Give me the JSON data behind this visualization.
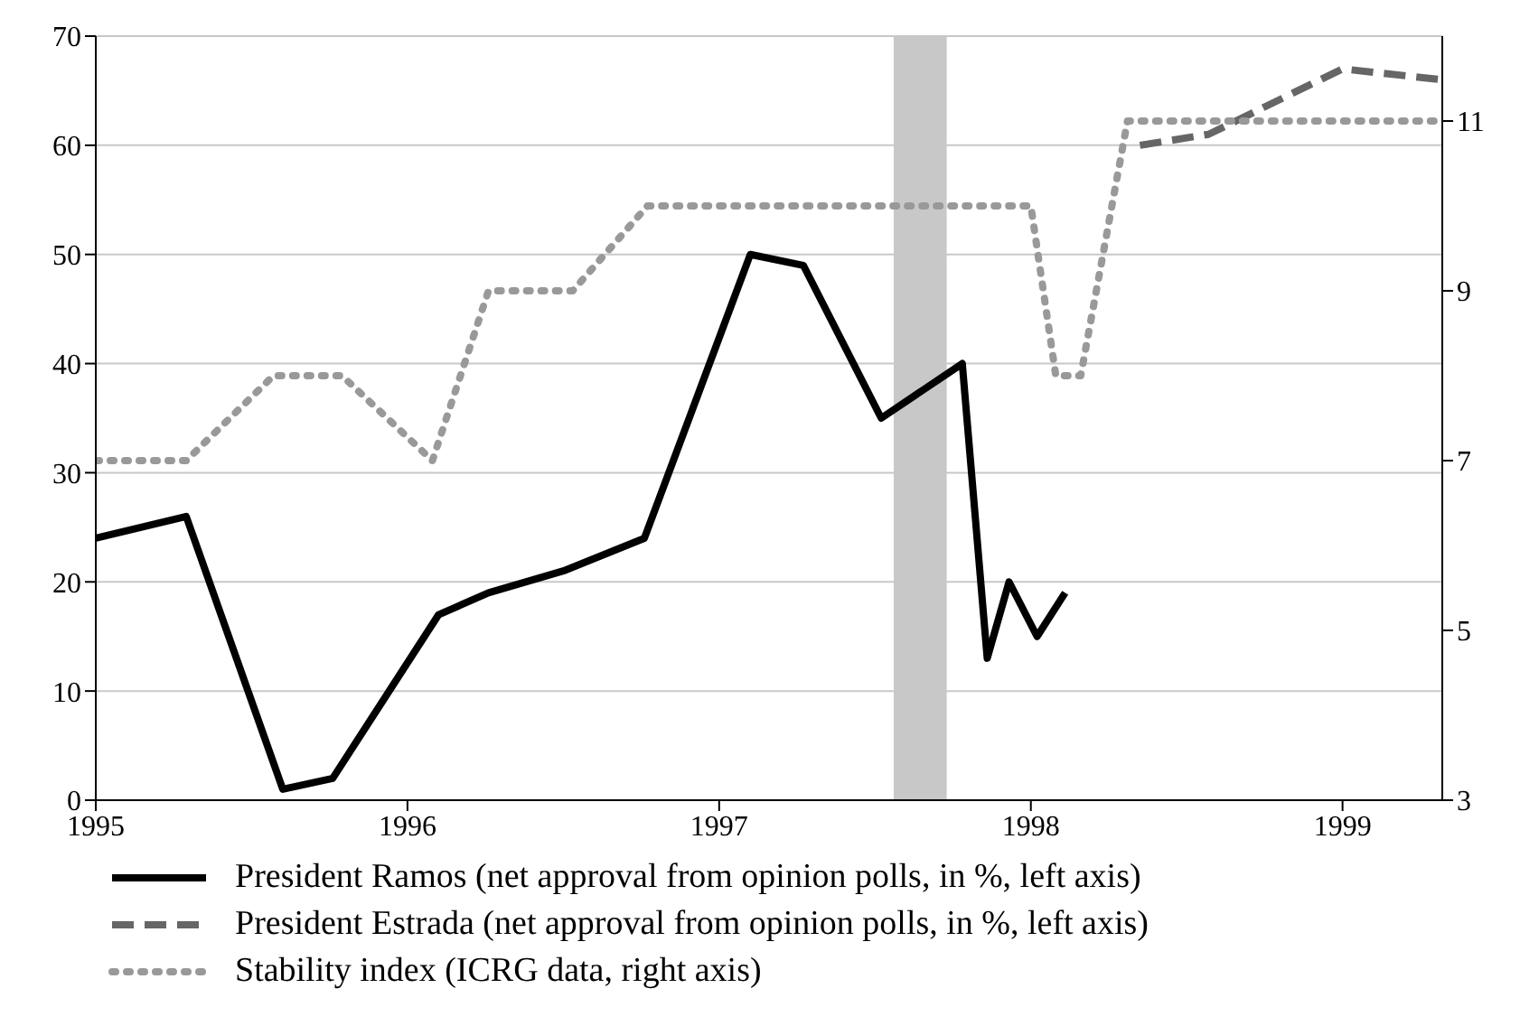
{
  "chart_data": {
    "type": "line",
    "x": [
      1995,
      1995.29,
      1995.6,
      1995.76,
      1996.1,
      1996.26,
      1996.5,
      1996.76,
      1997.1,
      1997.27,
      1997.52,
      1997.78,
      1997.86,
      1997.93,
      1998.02,
      1998.11
    ],
    "series": [
      {
        "name": "President Ramos (net approval from opinion polls, in %, left axis)",
        "color": "#000000",
        "line_style": "solid",
        "values": [
          24,
          26,
          1,
          2,
          17,
          19,
          21,
          24,
          50,
          49,
          35,
          40,
          13,
          20,
          15,
          19
        ]
      },
      {
        "name": "President Estrada (net approval from opinion polls, in %, left axis)",
        "color": "#666666",
        "line_style": "dashed",
        "x": [
          1998.35,
          1998.57,
          1999.0,
          1999.32
        ],
        "values": [
          60,
          61,
          67,
          66
        ]
      },
      {
        "name": "Stability index (ICRG data, right axis)",
        "color": "#999999",
        "line_style": "dotted",
        "axis": "y2",
        "x": [
          1995,
          1995.29,
          1995.57,
          1995.79,
          1996.08,
          1996.26,
          1996.53,
          1996.77,
          1998.0,
          1998.08,
          1998.16,
          1998.31,
          1999.32
        ],
        "values": [
          7,
          7,
          8,
          8,
          7,
          9,
          9,
          10,
          10,
          8,
          8,
          11,
          11
        ]
      }
    ],
    "xlim": [
      1995,
      1999.32
    ],
    "xticks": [
      1995,
      1996,
      1997,
      1998,
      1999
    ],
    "ylim": [
      0,
      70
    ],
    "yticks": [
      0,
      10,
      20,
      30,
      40,
      50,
      60,
      70
    ],
    "y2lim": [
      3,
      12
    ],
    "y2ticks": [
      3,
      5,
      7,
      9,
      11
    ],
    "bands": [
      {
        "axis": "x",
        "from": 1997.56,
        "to": 1997.73,
        "color": "#c8c8c8"
      }
    ],
    "grid": "y",
    "legend": "bottom",
    "marker": "none"
  }
}
